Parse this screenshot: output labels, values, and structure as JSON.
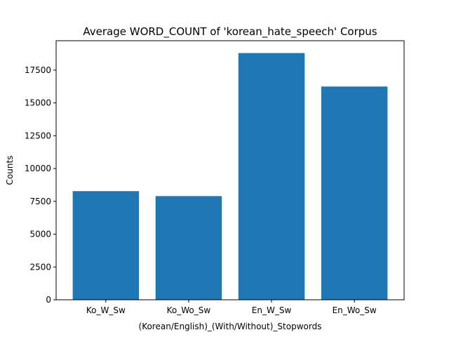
{
  "chart_data": {
    "type": "bar",
    "title": "Average WORD_COUNT of 'korean_hate_speech' Corpus",
    "xlabel": "(Korean/English)_(With/Without)_Stopwords",
    "ylabel": "Counts",
    "categories": [
      "Ko_W_Sw",
      "Ko_Wo_Sw",
      "En_W_Sw",
      "En_Wo_Sw"
    ],
    "values": [
      8280,
      7900,
      18800,
      16250
    ],
    "ylim": [
      0,
      19740
    ],
    "yticks": [
      0,
      2500,
      5000,
      7500,
      10000,
      12500,
      15000,
      17500
    ],
    "ytick_labels": [
      "0",
      "2500",
      "5000",
      "7500",
      "10000",
      "12500",
      "15000",
      "17500"
    ],
    "bar_color": "#1f77b4",
    "grid": false,
    "legend": "none"
  }
}
